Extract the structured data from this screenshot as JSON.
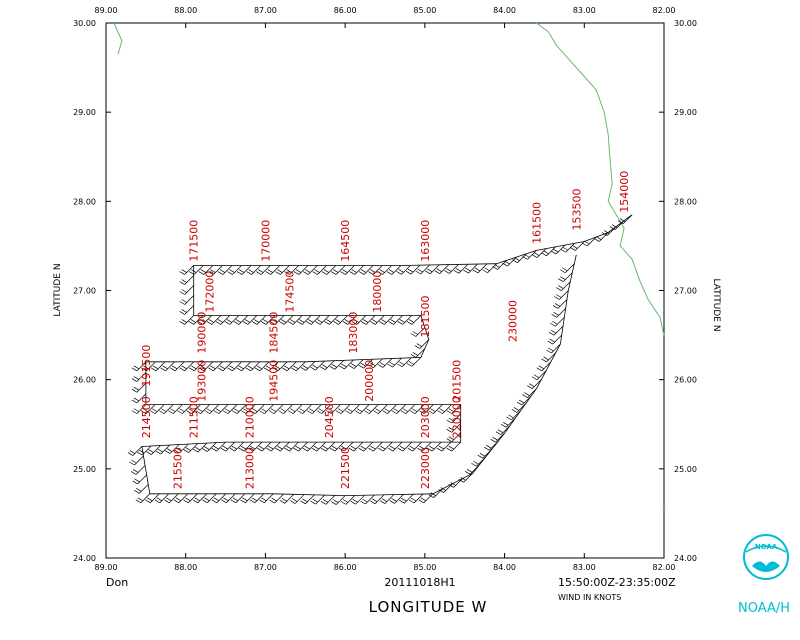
{
  "map": {
    "lon_range": [
      -89,
      -82
    ],
    "lat_range": [
      24,
      30
    ],
    "top_ticks": [
      "89.00",
      "88.00",
      "87.00",
      "86.00",
      "85.00",
      "84.00",
      "83.00",
      "82.00"
    ],
    "bottom_ticks": [
      "89.00",
      "88.00",
      "87.00",
      "86.00",
      "85.00",
      "84.00",
      "83.00",
      "82.00"
    ],
    "left_ticks": [
      "30.00",
      "29.00",
      "28.00",
      "27.00",
      "26.00",
      "25.00",
      "24.00"
    ],
    "right_ticks": [
      "30.00",
      "29.00",
      "28.00",
      "27.00",
      "26.00",
      "25.00",
      "24.00"
    ],
    "left_axis_label": "LATITUDE   N",
    "right_axis_label": "LATITUDE   N",
    "x_axis_label": "LONGITUDE   W",
    "coast_color": "#66bb6a",
    "label_color": "#cc0000"
  },
  "footer": {
    "storm": "Don",
    "flight_id": "20111018H1",
    "time_range": "15:50:00Z-23:35:00Z",
    "units": "WIND IN KNOTS"
  },
  "logo": {
    "emblem_text": "NOAA",
    "caption": "NOAA/H"
  },
  "track": {
    "points": [
      [
        -82.4,
        27.85
      ],
      [
        -82.7,
        27.65
      ],
      [
        -83.0,
        27.55
      ],
      [
        -83.6,
        27.45
      ],
      [
        -84.1,
        27.3
      ],
      [
        -85.3,
        27.28
      ],
      [
        -86.7,
        27.28
      ],
      [
        -87.9,
        27.28
      ],
      [
        -87.9,
        26.72
      ],
      [
        -86.2,
        26.72
      ],
      [
        -85.05,
        26.72
      ],
      [
        -84.95,
        26.45
      ],
      [
        -85.05,
        26.25
      ],
      [
        -86.5,
        26.2
      ],
      [
        -87.3,
        26.2
      ],
      [
        -88.5,
        26.2
      ],
      [
        -88.5,
        25.72
      ],
      [
        -86.9,
        25.72
      ],
      [
        -85.7,
        25.72
      ],
      [
        -84.55,
        25.72
      ],
      [
        -84.55,
        25.3
      ],
      [
        -85.9,
        25.3
      ],
      [
        -87.5,
        25.3
      ],
      [
        -88.55,
        25.25
      ],
      [
        -88.45,
        24.72
      ],
      [
        -86.9,
        24.72
      ],
      [
        -86.0,
        24.7
      ],
      [
        -84.9,
        24.72
      ],
      [
        -84.4,
        24.95
      ],
      [
        -84.0,
        25.4
      ],
      [
        -83.6,
        25.9
      ],
      [
        -83.3,
        26.4
      ],
      [
        -83.2,
        27.0
      ],
      [
        -83.1,
        27.4
      ]
    ]
  },
  "time_labels": [
    {
      "text": "171500",
      "lon": -87.9,
      "lat": 27.3
    },
    {
      "text": "170000",
      "lon": -87.0,
      "lat": 27.3
    },
    {
      "text": "164500",
      "lon": -86.0,
      "lat": 27.3
    },
    {
      "text": "163000",
      "lon": -85.0,
      "lat": 27.3
    },
    {
      "text": "161500",
      "lon": -83.6,
      "lat": 27.5
    },
    {
      "text": "153500",
      "lon": -83.1,
      "lat": 27.65
    },
    {
      "text": "154000",
      "lon": -82.5,
      "lat": 27.85
    },
    {
      "text": "172000",
      "lon": -87.7,
      "lat": 26.73
    },
    {
      "text": "174500",
      "lon": -86.7,
      "lat": 26.73
    },
    {
      "text": "180000",
      "lon": -85.6,
      "lat": 26.73
    },
    {
      "text": "181500",
      "lon": -85.0,
      "lat": 26.45
    },
    {
      "text": "183000",
      "lon": -85.9,
      "lat": 26.27
    },
    {
      "text": "184500",
      "lon": -86.9,
      "lat": 26.27
    },
    {
      "text": "190000",
      "lon": -87.8,
      "lat": 26.27
    },
    {
      "text": "191500",
      "lon": -88.5,
      "lat": 25.9
    },
    {
      "text": "193000",
      "lon": -87.8,
      "lat": 25.73
    },
    {
      "text": "194500",
      "lon": -86.9,
      "lat": 25.73
    },
    {
      "text": "200000",
      "lon": -85.7,
      "lat": 25.73
    },
    {
      "text": "201500",
      "lon": -84.6,
      "lat": 25.73
    },
    {
      "text": "203000",
      "lon": -85.0,
      "lat": 25.32
    },
    {
      "text": "204500",
      "lon": -86.2,
      "lat": 25.32
    },
    {
      "text": "210000",
      "lon": -87.2,
      "lat": 25.32
    },
    {
      "text": "211500",
      "lon": -87.9,
      "lat": 25.32
    },
    {
      "text": "214500",
      "lon": -88.5,
      "lat": 25.32
    },
    {
      "text": "220000",
      "lon": -84.6,
      "lat": 25.32
    },
    {
      "text": "230000",
      "lon": -83.9,
      "lat": 26.4
    },
    {
      "text": "215500",
      "lon": -88.1,
      "lat": 24.75
    },
    {
      "text": "213000",
      "lon": -87.2,
      "lat": 24.75
    },
    {
      "text": "221500",
      "lon": -86.0,
      "lat": 24.75
    },
    {
      "text": "223000",
      "lon": -85.0,
      "lat": 24.75
    }
  ],
  "coastline": [
    [
      -83.6,
      30.0
    ],
    [
      -83.45,
      29.9
    ],
    [
      -83.35,
      29.75
    ],
    [
      -83.2,
      29.6
    ],
    [
      -83.05,
      29.45
    ],
    [
      -82.85,
      29.25
    ],
    [
      -82.75,
      29.0
    ],
    [
      -82.7,
      28.75
    ],
    [
      -82.68,
      28.5
    ],
    [
      -82.65,
      28.2
    ],
    [
      -82.7,
      28.0
    ],
    [
      -82.6,
      27.85
    ],
    [
      -82.5,
      27.7
    ],
    [
      -82.55,
      27.5
    ],
    [
      -82.4,
      27.35
    ],
    [
      -82.3,
      27.1
    ],
    [
      -82.2,
      26.9
    ],
    [
      -82.05,
      26.7
    ],
    [
      -82.0,
      26.5
    ]
  ],
  "panhandle": [
    [
      -88.85,
      29.65
    ],
    [
      -88.8,
      29.8
    ],
    [
      -88.9,
      30.0
    ]
  ],
  "keys_dot": [
    -82.0,
    24.55
  ]
}
